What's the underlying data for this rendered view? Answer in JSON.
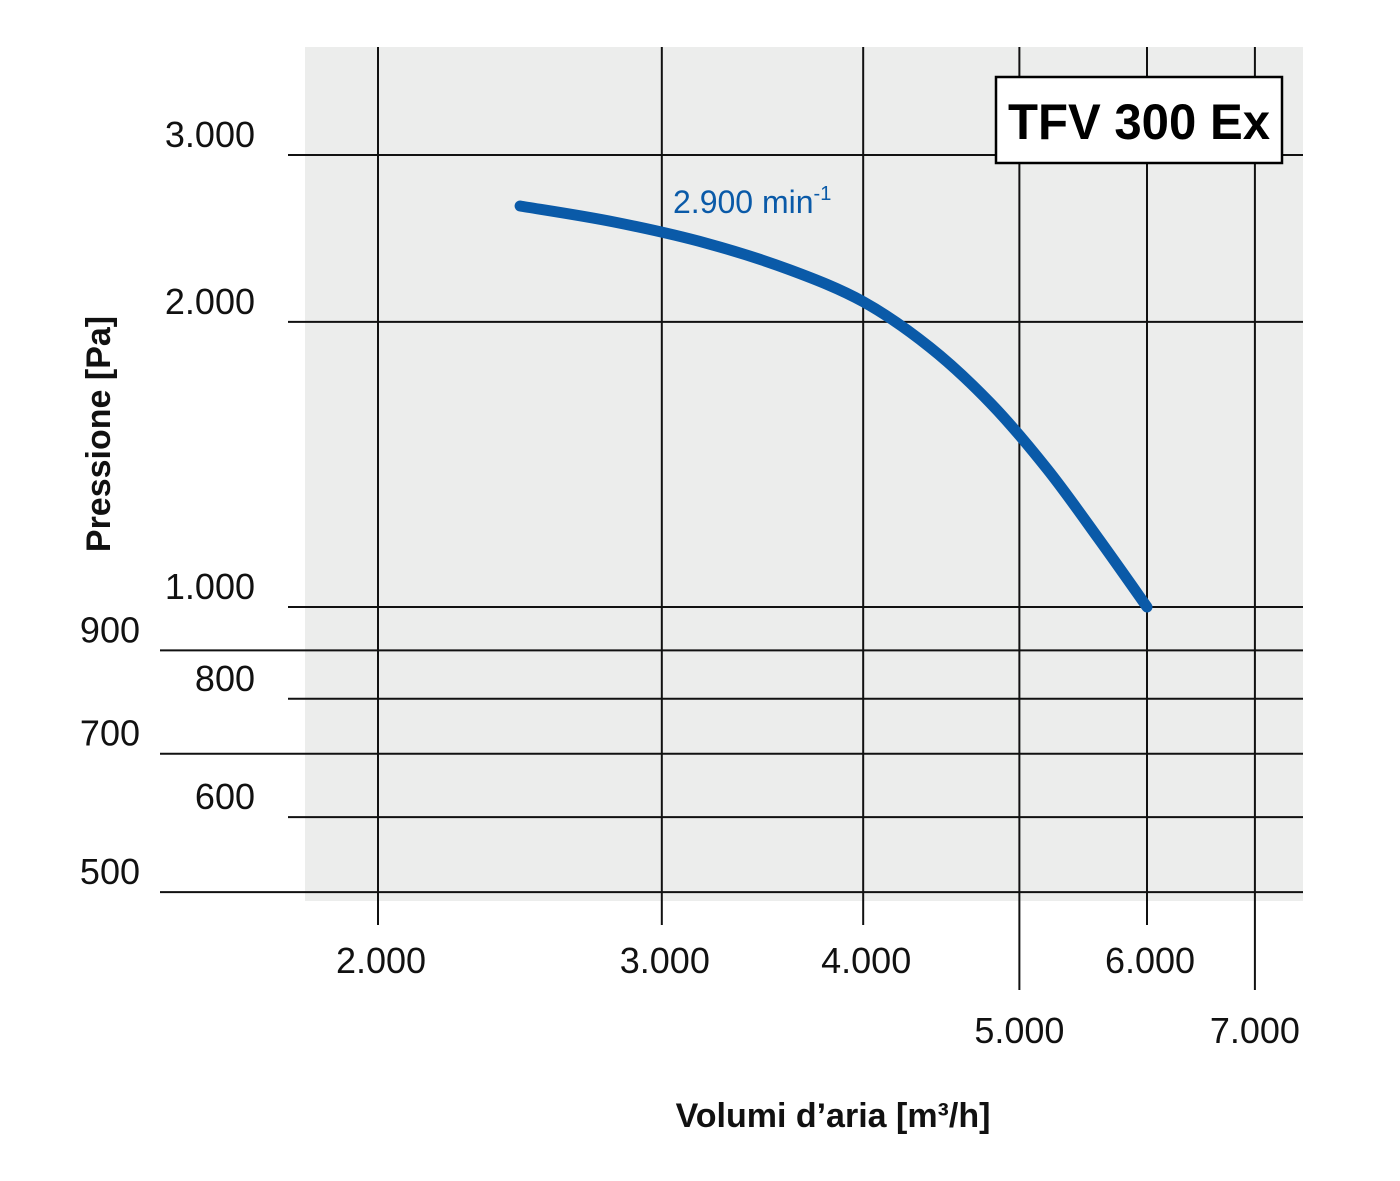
{
  "chart_data": {
    "type": "line",
    "title": "TFV 300 Ex",
    "xlabel": "Volumi d’aria [m³/h]",
    "ylabel": "Pressione [Pa]",
    "x_scale": "log",
    "y_scale": "log",
    "xlim": [
      1750,
      7200
    ],
    "ylim": [
      480,
      3600
    ],
    "x_ticks": [
      {
        "value": 2000,
        "label": "2.000",
        "row": "upper"
      },
      {
        "value": 3000,
        "label": "3.000",
        "row": "upper"
      },
      {
        "value": 4000,
        "label": "4.000",
        "row": "upper"
      },
      {
        "value": 5000,
        "label": "5.000",
        "row": "lower"
      },
      {
        "value": 6000,
        "label": "6.000",
        "row": "upper"
      },
      {
        "value": 7000,
        "label": "7.000",
        "row": "lower"
      }
    ],
    "y_ticks": [
      {
        "value": 3000,
        "label": "3.000",
        "indent": "inner"
      },
      {
        "value": 2000,
        "label": "2.000",
        "indent": "inner"
      },
      {
        "value": 1000,
        "label": "1.000",
        "indent": "inner"
      },
      {
        "value": 900,
        "label": "900",
        "indent": "outer"
      },
      {
        "value": 800,
        "label": "800",
        "indent": "inner"
      },
      {
        "value": 700,
        "label": "700",
        "indent": "outer"
      },
      {
        "value": 600,
        "label": "600",
        "indent": "inner"
      },
      {
        "value": 500,
        "label": "500",
        "indent": "outer"
      }
    ],
    "grid": true,
    "series": [
      {
        "name": "2.900 min⁻¹",
        "label_base": "2.900 min",
        "label_sup": "-1",
        "color": "#0a5aa8",
        "x": [
          2450,
          2800,
          3200,
          3600,
          4000,
          4400,
          4800,
          5200,
          5600,
          6000
        ],
        "y": [
          2650,
          2550,
          2420,
          2270,
          2100,
          1880,
          1640,
          1400,
          1180,
          1000
        ]
      }
    ]
  },
  "colors": {
    "plot_background": "#ecedec",
    "grid": "#111111",
    "curve": "#0a5aa8"
  }
}
